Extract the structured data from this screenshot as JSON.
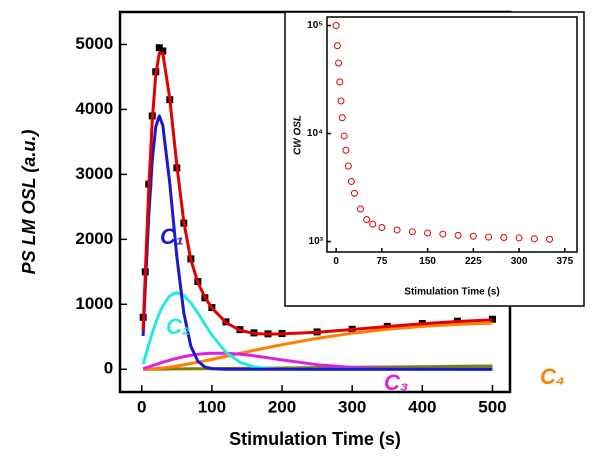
{
  "chart_data": [
    {
      "type": "line",
      "x_label": "Stimulation Time (s)",
      "y_label": "PS LM OSL (a.u.)",
      "xlim": [
        -31,
        525
      ],
      "xticks": [
        0,
        100,
        200,
        300,
        400,
        500
      ],
      "ylim": [
        -350,
        5500
      ],
      "yticks": [
        0,
        1000,
        2000,
        3000,
        4000,
        5000
      ],
      "x": [
        2,
        5,
        10,
        15,
        20,
        25,
        30,
        40,
        50,
        60,
        70,
        80,
        90,
        100,
        120,
        140,
        160,
        180,
        200,
        250,
        300,
        350,
        400,
        450,
        500
      ],
      "series": [
        {
          "color": "#000000",
          "marker": "square",
          "values": [
            800,
            1500,
            2850,
            3900,
            4580,
            4950,
            4900,
            4150,
            3100,
            2250,
            1700,
            1350,
            1100,
            950,
            730,
            610,
            560,
            545,
            550,
            575,
            615,
            660,
            705,
            740,
            770
          ]
        },
        {
          "color": "#808000",
          "values": [
            0,
            0,
            1,
            1,
            2,
            2,
            3,
            4,
            5,
            6,
            7,
            8,
            9,
            10,
            12,
            14,
            16,
            18,
            20,
            25,
            30,
            35,
            40,
            45,
            50
          ]
        },
        {
          "color": "#ff8000",
          "values": [
            0,
            1,
            3,
            6,
            10,
            15,
            20,
            34,
            50,
            68,
            88,
            108,
            130,
            152,
            198,
            245,
            290,
            335,
            378,
            475,
            555,
            615,
            660,
            690,
            710
          ]
        },
        {
          "color": "#e020e0",
          "values": [
            8,
            19,
            37,
            56,
            74,
            91,
            108,
            140,
            169,
            194,
            214,
            230,
            241,
            248,
            248,
            233,
            208,
            177,
            144,
            71,
            27,
            8,
            2,
            0,
            0
          ]
        },
        {
          "color": "#22e8e8",
          "values": [
            78,
            194,
            381,
            558,
            718,
            858,
            975,
            1130,
            1180,
            1136,
            1022,
            865,
            693,
            526,
            262,
            108,
            37,
            11,
            3,
            0,
            0,
            0,
            0,
            0,
            0
          ]
        },
        {
          "color": "#1a1acc",
          "values": [
            512,
            1260,
            2375,
            3222,
            3736,
            3900,
            3756,
            2859,
            1741,
            867,
            357,
            123,
            36,
            9,
            0,
            0,
            0,
            0,
            0,
            0,
            0,
            0,
            0,
            0,
            0
          ]
        },
        {
          "color": "#e00000",
          "values": [
            598,
            1474,
            2797,
            3843,
            4540,
            4866,
            4862,
            4167,
            3145,
            2271,
            1688,
            1334,
            1109,
            945,
            720,
            600,
            551,
            541,
            545,
            571,
            612,
            658,
            702,
            735,
            760
          ]
        }
      ],
      "annotations": [
        {
          "text": "C₁",
          "color": "#1a1acc"
        },
        {
          "text": "C₂",
          "color": "#22e8e8"
        },
        {
          "text": "C₃",
          "color": "#e020e0"
        },
        {
          "text": "C₄",
          "color": "#ff8000"
        }
      ]
    },
    {
      "type": "scatter",
      "x_label": "Stimulation Time (s)",
      "y_label": "CW OSL",
      "yscale": "log",
      "xlim": [
        -15,
        395
      ],
      "xticks": [
        0,
        75,
        150,
        225,
        300,
        375
      ],
      "ylim": [
        800,
        120000
      ],
      "yticks": [
        {
          "value": 1000,
          "label": "10³"
        },
        {
          "value": 10000,
          "label": "10⁴"
        },
        {
          "value": 100000,
          "label": "10⁵"
        }
      ],
      "x": [
        0,
        2,
        4,
        6,
        8,
        10,
        13,
        16,
        20,
        25,
        30,
        40,
        50,
        60,
        75,
        100,
        125,
        150,
        175,
        200,
        225,
        250,
        275,
        300,
        325,
        350
      ],
      "series": [
        {
          "color": "#e00000",
          "marker": "circle",
          "values": [
            100000,
            65000,
            45000,
            30000,
            20000,
            14000,
            9500,
            7000,
            5000,
            3600,
            2800,
            2000,
            1600,
            1450,
            1350,
            1280,
            1230,
            1200,
            1170,
            1140,
            1120,
            1100,
            1090,
            1080,
            1060,
            1050
          ]
        }
      ]
    }
  ]
}
